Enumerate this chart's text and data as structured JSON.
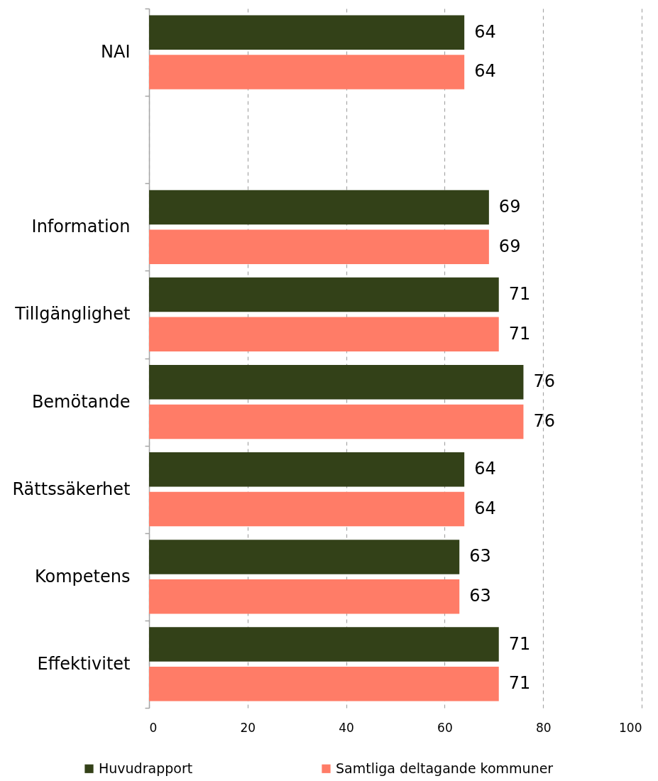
{
  "chart_data": {
    "type": "bar",
    "orientation": "horizontal",
    "categories": [
      "NAI",
      null,
      "Information",
      "Tillgänglighet",
      "Bemötande",
      "Rättssäkerhet",
      "Kompetens",
      "Effektivitet"
    ],
    "series": [
      {
        "name": "Huvudrapport",
        "color": "#334118",
        "values": [
          64,
          null,
          69,
          71,
          76,
          64,
          63,
          71
        ]
      },
      {
        "name": "Samtliga deltagande kommuner",
        "color": "#ff7c67",
        "values": [
          64,
          null,
          69,
          71,
          76,
          64,
          63,
          71
        ]
      }
    ],
    "xlim": [
      0,
      100
    ],
    "xticks": [
      0,
      20,
      40,
      60,
      80,
      100
    ],
    "grid": "x",
    "legend": "bottom",
    "data_labels": true
  }
}
